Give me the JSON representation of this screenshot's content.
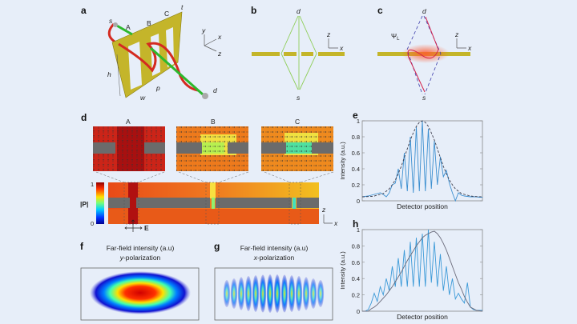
{
  "panels": {
    "a": {
      "label": "a",
      "s": "s",
      "d": "d",
      "A": "A",
      "B": "B",
      "C": "C",
      "t": "t",
      "h": "h",
      "w": "w",
      "p": "p",
      "axis_x": "x",
      "axis_y": "y",
      "axis_z": "z"
    },
    "b": {
      "label": "b",
      "d": "d",
      "s": "s",
      "axis_z": "z",
      "axis_x": "x"
    },
    "c": {
      "label": "c",
      "d": "d",
      "s": "s",
      "psi": "Ψ",
      "psi_sub": "L",
      "axis_z": "z",
      "axis_x": "x"
    },
    "d": {
      "label": "d",
      "inset_A": "A",
      "inset_B": "B",
      "inset_C": "C",
      "colorbar_label": "|P|",
      "colorbar_max": "1",
      "colorbar_min": "0",
      "field_label": "E",
      "axis_z": "z",
      "axis_x": "x"
    },
    "f": {
      "label": "f",
      "title1": "Far-field intensity (a.u)",
      "title2_italic": "y",
      "title2": "-polarization"
    },
    "g": {
      "label": "g",
      "title1": "Far-field intensity (a.u)",
      "title2_italic": "x",
      "title2": "-polarization"
    }
  },
  "colors": {
    "background": "#e7eef9",
    "plate": "#c4b52a",
    "path_red": "#d42a20",
    "path_green": "#2db82d",
    "slit_lines": "#8fce5a",
    "curve_blue": "#3c8fd0",
    "curve_gray": "#6a6a7a"
  },
  "chart_data": [
    {
      "panel": "e",
      "label": "e",
      "type": "line",
      "xlabel": "Detector position",
      "ylabel": "Intensity (a.u.)",
      "ylim": [
        0,
        1
      ],
      "yticks": [
        "0",
        "0.2",
        "0.4",
        "0.6",
        "0.8",
        "1"
      ],
      "x": [
        0,
        0.025,
        0.05,
        0.075,
        0.1,
        0.125,
        0.15,
        0.175,
        0.2,
        0.225,
        0.25,
        0.275,
        0.3,
        0.325,
        0.35,
        0.375,
        0.4,
        0.425,
        0.45,
        0.475,
        0.5,
        0.525,
        0.55,
        0.575,
        0.6,
        0.625,
        0.65,
        0.675,
        0.7,
        0.725,
        0.75,
        0.775,
        0.8,
        0.825,
        0.85,
        0.875,
        0.9,
        0.925,
        0.95,
        0.975,
        1
      ],
      "series": [
        {
          "style": "solid",
          "values": [
            0.05,
            0.055,
            0.06,
            0.07,
            0.08,
            0.09,
            0.1,
            0.08,
            0.05,
            0.1,
            0.2,
            0.22,
            0.4,
            0.15,
            0.6,
            0.12,
            0.8,
            0.1,
            0.92,
            0.12,
            1.0,
            0.12,
            0.9,
            0.15,
            0.75,
            0.2,
            0.55,
            0.3,
            0.38,
            0.22,
            0.1,
            0.0,
            0.1,
            0.07,
            0.06,
            0.055,
            0.05,
            0.05,
            0.05,
            0.045,
            0.045
          ]
        },
        {
          "style": "dashed",
          "values": [
            0.05,
            0.051,
            0.053,
            0.055,
            0.06,
            0.07,
            0.08,
            0.09,
            0.12,
            0.15,
            0.2,
            0.26,
            0.34,
            0.43,
            0.54,
            0.65,
            0.76,
            0.85,
            0.93,
            0.98,
            1.0,
            0.98,
            0.93,
            0.85,
            0.76,
            0.65,
            0.54,
            0.43,
            0.34,
            0.26,
            0.2,
            0.15,
            0.12,
            0.09,
            0.08,
            0.07,
            0.06,
            0.055,
            0.053,
            0.051,
            0.05
          ]
        }
      ]
    },
    {
      "panel": "h",
      "label": "h",
      "type": "line",
      "xlabel": "Detector position",
      "ylabel": "Intensity (a.u.)",
      "ylim": [
        0,
        1
      ],
      "yticks": [
        "0",
        "0.2",
        "0.4",
        "0.6",
        "0.8",
        "1"
      ],
      "x": [
        0,
        0.025,
        0.05,
        0.075,
        0.1,
        0.125,
        0.15,
        0.175,
        0.2,
        0.225,
        0.25,
        0.275,
        0.3,
        0.325,
        0.35,
        0.375,
        0.4,
        0.425,
        0.45,
        0.475,
        0.5,
        0.525,
        0.55,
        0.575,
        0.6,
        0.625,
        0.65,
        0.675,
        0.7,
        0.725,
        0.75,
        0.775,
        0.8,
        0.825,
        0.85,
        0.875,
        0.9,
        0.925,
        0.95,
        0.975,
        1
      ],
      "series": [
        {
          "style": "blue",
          "values": [
            0,
            0,
            0.02,
            0.1,
            0.22,
            0.12,
            0.3,
            0.2,
            0.4,
            0.25,
            0.55,
            0.3,
            0.65,
            0.3,
            0.75,
            0.3,
            0.85,
            0.3,
            0.9,
            0.3,
            0.95,
            0.3,
            1.0,
            0.35,
            0.85,
            0.3,
            0.7,
            0.25,
            0.55,
            0.2,
            0.4,
            0.15,
            0.22,
            0.15,
            0.1,
            0.35,
            0.05,
            0.02,
            0.01,
            0.01,
            0.01
          ]
        },
        {
          "style": "gray",
          "values": [
            0,
            0,
            0,
            0.03,
            0.05,
            0.08,
            0.12,
            0.16,
            0.2,
            0.25,
            0.3,
            0.36,
            0.42,
            0.48,
            0.55,
            0.62,
            0.68,
            0.74,
            0.8,
            0.85,
            0.9,
            0.93,
            0.95,
            0.97,
            0.98,
            0.95,
            0.9,
            0.83,
            0.75,
            0.65,
            0.55,
            0.45,
            0.35,
            0.27,
            0.18,
            0.11,
            0.05,
            0.03,
            0.01,
            0.005,
            0
          ]
        }
      ]
    }
  ]
}
